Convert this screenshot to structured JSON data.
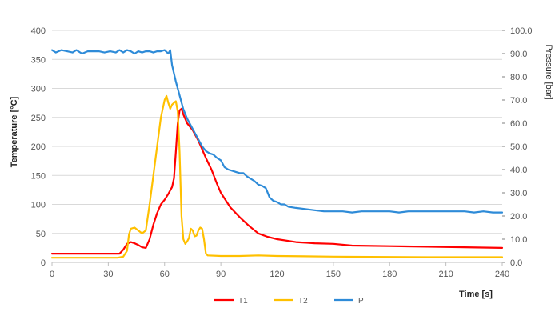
{
  "chart_data": {
    "type": "line",
    "xlabel": "Time [s]",
    "ylabel": "Temperature [°C]",
    "y2label": "Pressure [bar]",
    "xlim": [
      0,
      240
    ],
    "ylim": [
      0,
      400
    ],
    "y2lim": [
      0,
      100
    ],
    "x_ticks": [
      "0",
      "30",
      "60",
      "90",
      "120",
      "150",
      "180",
      "210",
      "240"
    ],
    "y_ticks": [
      "0",
      "50",
      "100",
      "150",
      "200",
      "250",
      "300",
      "350",
      "400"
    ],
    "y2_ticks": [
      "0.0",
      "10.0",
      "20.0",
      "30.0",
      "40.0",
      "50.0",
      "60.0",
      "70.0",
      "80.0",
      "90.0",
      "100.0"
    ],
    "grid": true,
    "legend_position": "bottom",
    "series": [
      {
        "name": "T1",
        "axis": "left",
        "color": "#ff0000",
        "points": [
          [
            0,
            15
          ],
          [
            10,
            15
          ],
          [
            20,
            15
          ],
          [
            30,
            15
          ],
          [
            36,
            15
          ],
          [
            38,
            22
          ],
          [
            40,
            32
          ],
          [
            42,
            35
          ],
          [
            44,
            33
          ],
          [
            46,
            30
          ],
          [
            48,
            26
          ],
          [
            50,
            25
          ],
          [
            52,
            40
          ],
          [
            54,
            65
          ],
          [
            56,
            85
          ],
          [
            58,
            100
          ],
          [
            60,
            108
          ],
          [
            62,
            118
          ],
          [
            64,
            130
          ],
          [
            65,
            145
          ],
          [
            66,
            190
          ],
          [
            67,
            240
          ],
          [
            68,
            262
          ],
          [
            69,
            265
          ],
          [
            70,
            255
          ],
          [
            72,
            240
          ],
          [
            75,
            228
          ],
          [
            78,
            210
          ],
          [
            80,
            195
          ],
          [
            82,
            180
          ],
          [
            85,
            160
          ],
          [
            88,
            135
          ],
          [
            90,
            120
          ],
          [
            95,
            95
          ],
          [
            100,
            78
          ],
          [
            105,
            63
          ],
          [
            110,
            50
          ],
          [
            115,
            44
          ],
          [
            120,
            40
          ],
          [
            130,
            35
          ],
          [
            140,
            33
          ],
          [
            150,
            32
          ],
          [
            160,
            29
          ],
          [
            180,
            28
          ],
          [
            200,
            27
          ],
          [
            220,
            26
          ],
          [
            240,
            25
          ]
        ]
      },
      {
        "name": "T2",
        "axis": "left",
        "color": "#ffc000",
        "points": [
          [
            0,
            8
          ],
          [
            20,
            8
          ],
          [
            35,
            8
          ],
          [
            38,
            10
          ],
          [
            40,
            20
          ],
          [
            41,
            48
          ],
          [
            42,
            58
          ],
          [
            44,
            60
          ],
          [
            46,
            55
          ],
          [
            48,
            50
          ],
          [
            50,
            55
          ],
          [
            52,
            100
          ],
          [
            54,
            150
          ],
          [
            56,
            200
          ],
          [
            58,
            250
          ],
          [
            60,
            280
          ],
          [
            61,
            287
          ],
          [
            62,
            275
          ],
          [
            63,
            265
          ],
          [
            64,
            272
          ],
          [
            65,
            275
          ],
          [
            66,
            278
          ],
          [
            67,
            260
          ],
          [
            68,
            190
          ],
          [
            69,
            80
          ],
          [
            70,
            40
          ],
          [
            71,
            32
          ],
          [
            72,
            36
          ],
          [
            73,
            42
          ],
          [
            74,
            58
          ],
          [
            75,
            55
          ],
          [
            76,
            45
          ],
          [
            77,
            46
          ],
          [
            78,
            55
          ],
          [
            79,
            60
          ],
          [
            80,
            58
          ],
          [
            81,
            40
          ],
          [
            82,
            15
          ],
          [
            83,
            12
          ],
          [
            90,
            11
          ],
          [
            100,
            11
          ],
          [
            110,
            12
          ],
          [
            120,
            11
          ],
          [
            150,
            10
          ],
          [
            200,
            9
          ],
          [
            240,
            9
          ]
        ]
      },
      {
        "name": "P",
        "axis": "right",
        "color": "#2e8bd8",
        "points": [
          [
            0,
            91.5
          ],
          [
            2,
            90.5
          ],
          [
            5,
            91.5
          ],
          [
            8,
            91
          ],
          [
            11,
            90.5
          ],
          [
            13,
            91.5
          ],
          [
            16,
            90
          ],
          [
            19,
            91
          ],
          [
            22,
            91
          ],
          [
            25,
            91
          ],
          [
            28,
            90.5
          ],
          [
            31,
            91
          ],
          [
            34,
            90.5
          ],
          [
            36,
            91.5
          ],
          [
            38,
            90.5
          ],
          [
            40,
            91.5
          ],
          [
            42,
            91
          ],
          [
            44,
            90
          ],
          [
            46,
            91
          ],
          [
            48,
            90.5
          ],
          [
            50,
            91
          ],
          [
            52,
            91
          ],
          [
            54,
            90.5
          ],
          [
            56,
            91
          ],
          [
            58,
            91
          ],
          [
            60,
            91.5
          ],
          [
            62,
            90
          ],
          [
            63,
            91.5
          ],
          [
            64,
            85
          ],
          [
            66,
            78
          ],
          [
            68,
            72
          ],
          [
            70,
            66
          ],
          [
            72,
            62
          ],
          [
            74,
            59
          ],
          [
            76,
            56
          ],
          [
            78,
            53
          ],
          [
            80,
            50
          ],
          [
            82,
            48
          ],
          [
            84,
            47
          ],
          [
            86,
            46.5
          ],
          [
            88,
            45
          ],
          [
            90,
            44
          ],
          [
            92,
            41
          ],
          [
            94,
            40
          ],
          [
            96,
            39.5
          ],
          [
            98,
            39
          ],
          [
            100,
            38.5
          ],
          [
            102,
            38.5
          ],
          [
            104,
            37
          ],
          [
            106,
            36
          ],
          [
            108,
            35
          ],
          [
            110,
            33.5
          ],
          [
            112,
            33
          ],
          [
            114,
            32
          ],
          [
            116,
            28
          ],
          [
            118,
            26.5
          ],
          [
            120,
            26
          ],
          [
            122,
            25
          ],
          [
            124,
            25
          ],
          [
            126,
            24
          ],
          [
            130,
            23.5
          ],
          [
            135,
            23
          ],
          [
            140,
            22.5
          ],
          [
            145,
            22
          ],
          [
            150,
            22
          ],
          [
            155,
            22
          ],
          [
            160,
            21.5
          ],
          [
            165,
            22
          ],
          [
            170,
            22
          ],
          [
            175,
            22
          ],
          [
            180,
            22
          ],
          [
            185,
            21.5
          ],
          [
            190,
            22
          ],
          [
            195,
            22
          ],
          [
            200,
            22
          ],
          [
            205,
            22
          ],
          [
            210,
            22
          ],
          [
            215,
            22
          ],
          [
            220,
            22
          ],
          [
            225,
            21.5
          ],
          [
            230,
            22
          ],
          [
            235,
            21.5
          ],
          [
            240,
            21.5
          ]
        ]
      }
    ]
  }
}
